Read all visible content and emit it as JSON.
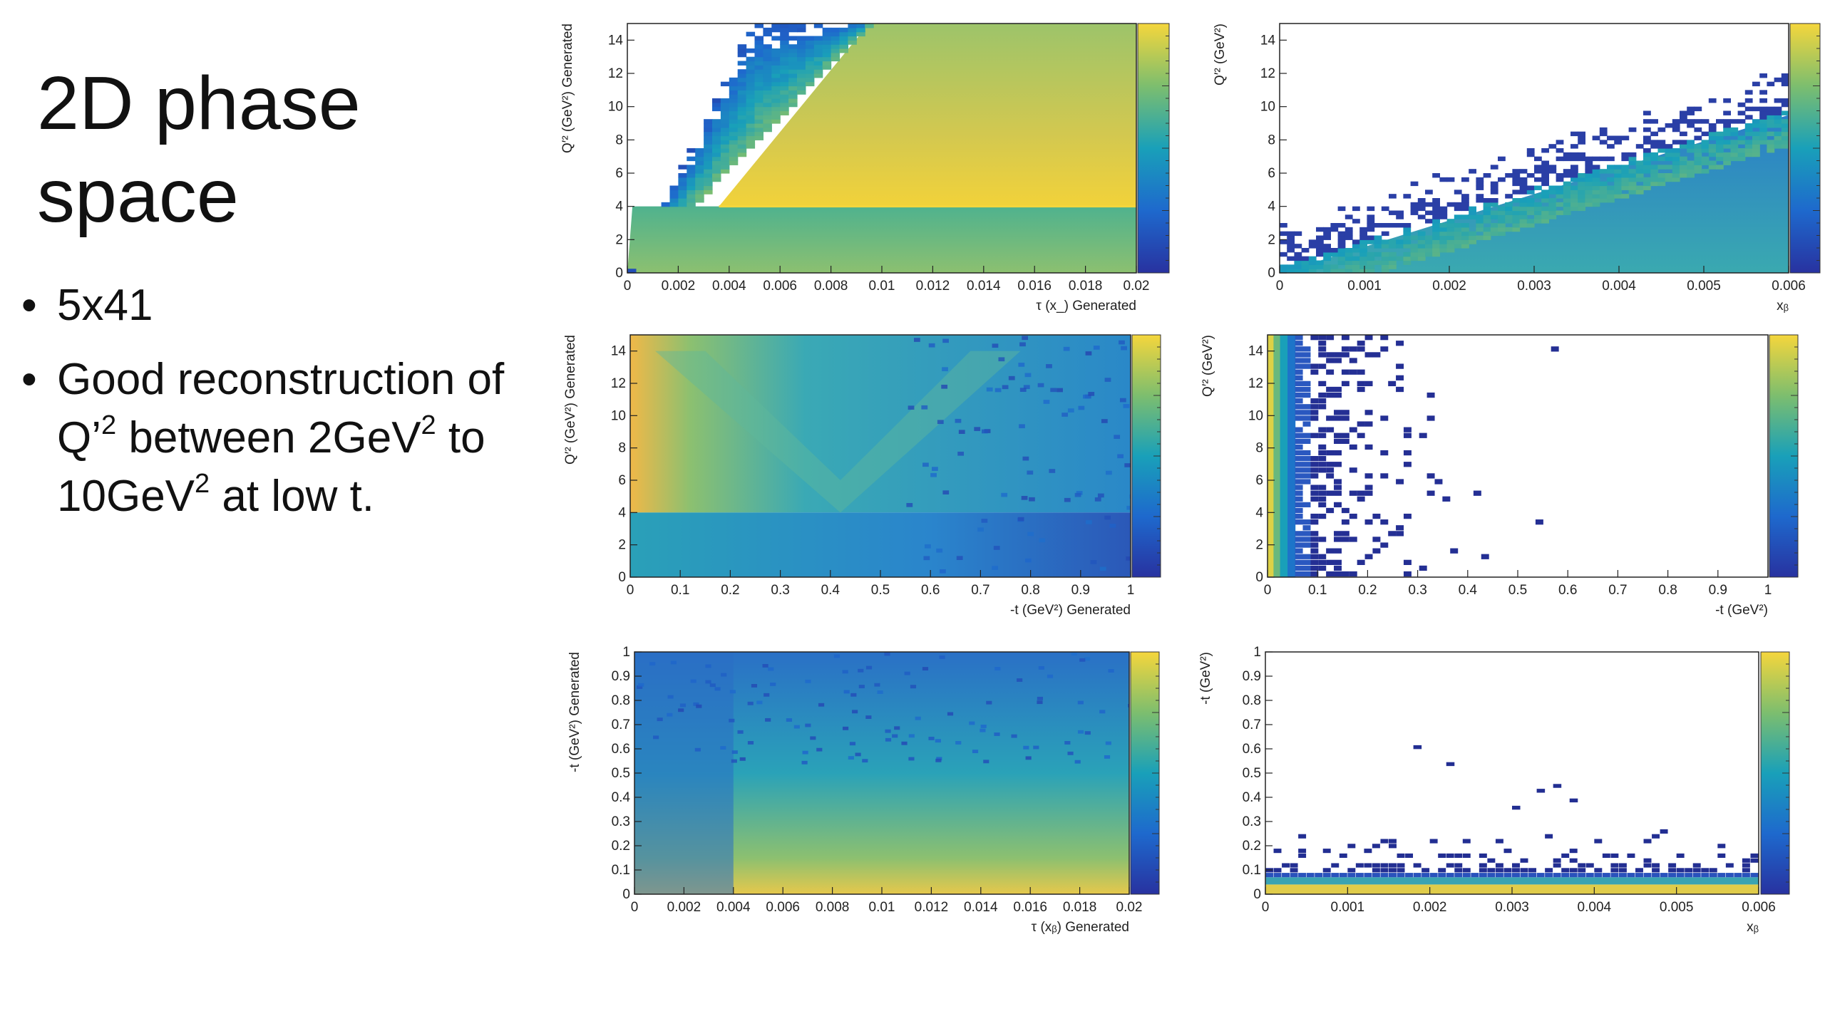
{
  "slide": {
    "title": "2D phase space",
    "bullets": [
      {
        "text": "5x41"
      },
      {
        "parts": [
          "Good reconstruction of Q’",
          "2",
          " between 2GeV",
          "2",
          " to 10GeV",
          "2",
          " at low t."
        ]
      }
    ]
  },
  "colors": {
    "low": "#2b3fa8",
    "mid": "#1fa0b8",
    "high": "#f5d63c"
  },
  "chart_data": [
    {
      "type": "heatmap",
      "id": "p1",
      "xlabel": "τ (x_) Generated",
      "ylabel": "Q′² (GeV²) Generated",
      "xlim": [
        0,
        0.02
      ],
      "ylim": [
        0,
        15
      ],
      "xticks": [
        "0",
        "0.002",
        "0.004",
        "0.006",
        "0.008",
        "0.01",
        "0.012",
        "0.014",
        "0.016",
        "0.018",
        "0.02"
      ],
      "xtick_values": [
        0,
        0.002,
        0.004,
        0.006,
        0.008,
        0.01,
        0.012,
        0.014,
        0.016,
        0.018,
        0.02
      ],
      "yticks": [
        "0",
        "2",
        "4",
        "6",
        "8",
        "10",
        "12",
        "14"
      ],
      "ytick_values": [
        0,
        2,
        4,
        6,
        8,
        10,
        12,
        14
      ]
    },
    {
      "type": "heatmap",
      "id": "p2",
      "xlabel": "xᵦ",
      "ylabel": "Q′² (GeV²)",
      "xlim": [
        0,
        0.006
      ],
      "ylim": [
        0,
        15
      ],
      "xticks": [
        "0",
        "0.001",
        "0.002",
        "0.003",
        "0.004",
        "0.005",
        "0.006"
      ],
      "xtick_values": [
        0,
        0.001,
        0.002,
        0.003,
        0.004,
        0.005,
        0.006
      ],
      "yticks": [
        "0",
        "2",
        "4",
        "6",
        "8",
        "10",
        "12",
        "14"
      ],
      "ytick_values": [
        0,
        2,
        4,
        6,
        8,
        10,
        12,
        14
      ]
    },
    {
      "type": "heatmap",
      "id": "p3",
      "xlabel": "-t (GeV²) Generated",
      "ylabel": "Q′² (GeV²) Generated",
      "xlim": [
        0,
        1
      ],
      "ylim": [
        0,
        15
      ],
      "xticks": [
        "0",
        "0.1",
        "0.2",
        "0.3",
        "0.4",
        "0.5",
        "0.6",
        "0.7",
        "0.8",
        "0.9",
        "1"
      ],
      "xtick_values": [
        0,
        0.1,
        0.2,
        0.3,
        0.4,
        0.5,
        0.6,
        0.7,
        0.8,
        0.9,
        1
      ],
      "yticks": [
        "0",
        "2",
        "4",
        "6",
        "8",
        "10",
        "12",
        "14"
      ],
      "ytick_values": [
        0,
        2,
        4,
        6,
        8,
        10,
        12,
        14
      ]
    },
    {
      "type": "heatmap",
      "id": "p4",
      "xlabel": "-t (GeV²)",
      "ylabel": "Q′² (GeV²)",
      "xlim": [
        0,
        1
      ],
      "ylim": [
        0,
        15
      ],
      "xticks": [
        "0",
        "0.1",
        "0.2",
        "0.3",
        "0.4",
        "0.5",
        "0.6",
        "0.7",
        "0.8",
        "0.9",
        "1"
      ],
      "xtick_values": [
        0,
        0.1,
        0.2,
        0.3,
        0.4,
        0.5,
        0.6,
        0.7,
        0.8,
        0.9,
        1
      ],
      "yticks": [
        "0",
        "2",
        "4",
        "6",
        "8",
        "10",
        "12",
        "14"
      ],
      "ytick_values": [
        0,
        2,
        4,
        6,
        8,
        10,
        12,
        14
      ]
    },
    {
      "type": "heatmap",
      "id": "p5",
      "xlabel": "τ (xᵦ) Generated",
      "ylabel": "-t (GeV²) Generated",
      "xlim": [
        0,
        0.02
      ],
      "ylim": [
        0,
        1
      ],
      "xticks": [
        "0",
        "0.002",
        "0.004",
        "0.006",
        "0.008",
        "0.01",
        "0.012",
        "0.014",
        "0.016",
        "0.018",
        "0.02"
      ],
      "xtick_values": [
        0,
        0.002,
        0.004,
        0.006,
        0.008,
        0.01,
        0.012,
        0.014,
        0.016,
        0.018,
        0.02
      ],
      "yticks": [
        "0",
        "0.1",
        "0.2",
        "0.3",
        "0.4",
        "0.5",
        "0.6",
        "0.7",
        "0.8",
        "0.9",
        "1"
      ],
      "ytick_values": [
        0,
        0.1,
        0.2,
        0.3,
        0.4,
        0.5,
        0.6,
        0.7,
        0.8,
        0.9,
        1
      ]
    },
    {
      "type": "heatmap",
      "id": "p6",
      "xlabel": "xᵦ",
      "ylabel": "-t (GeV²)",
      "xlim": [
        0,
        0.006
      ],
      "ylim": [
        0,
        1
      ],
      "xticks": [
        "0",
        "0.001",
        "0.002",
        "0.003",
        "0.004",
        "0.005",
        "0.006"
      ],
      "xtick_values": [
        0,
        0.001,
        0.002,
        0.003,
        0.004,
        0.005,
        0.006
      ],
      "yticks": [
        "0",
        "0.1",
        "0.2",
        "0.3",
        "0.4",
        "0.5",
        "0.6",
        "0.7",
        "0.8",
        "0.9",
        "1"
      ],
      "ytick_values": [
        0,
        0.1,
        0.2,
        0.3,
        0.4,
        0.5,
        0.6,
        0.7,
        0.8,
        0.9,
        1
      ]
    }
  ]
}
